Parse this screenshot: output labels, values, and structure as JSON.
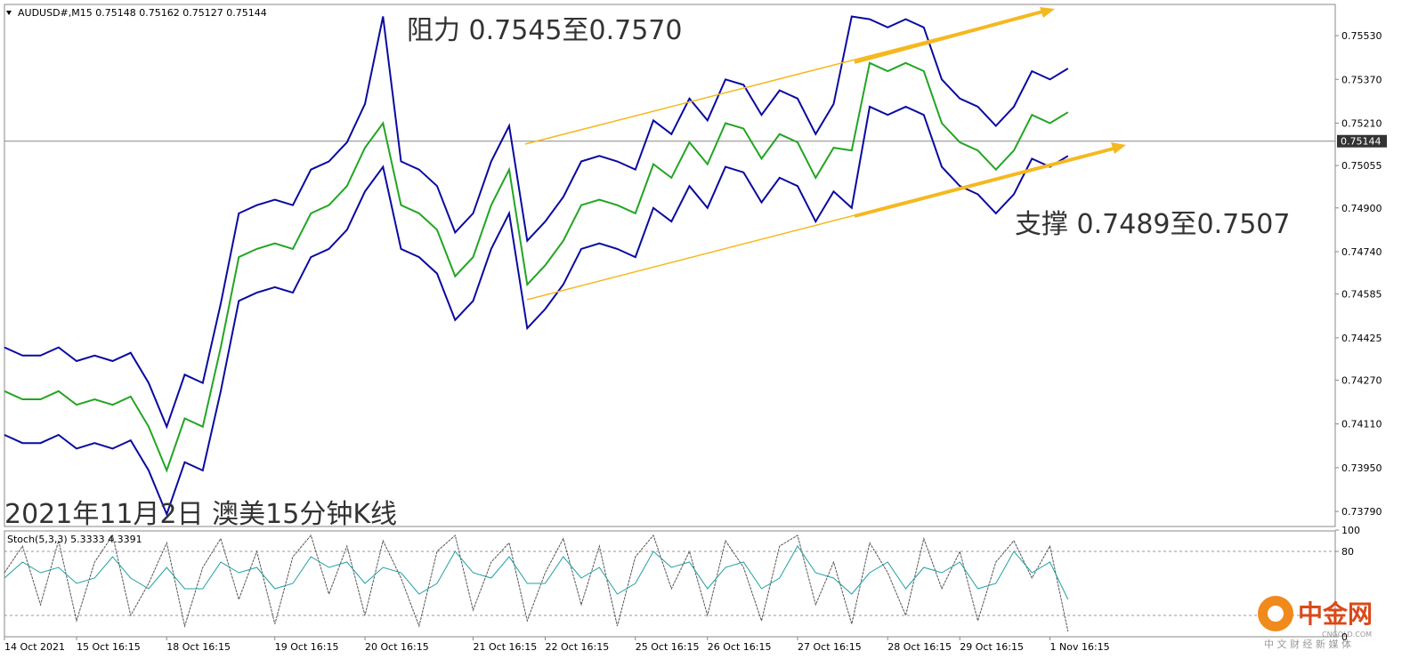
{
  "chart_data": [
    {
      "type": "line",
      "header": "AUDUSD#,M15  0.75148 0.75162 0.75127 0.75144",
      "categories": [
        "14 Oct 2021",
        null,
        null,
        null,
        "15 Oct 16:15",
        null,
        null,
        null,
        null,
        "18 Oct 16:15",
        null,
        null,
        null,
        null,
        null,
        "19 Oct 16:15",
        null,
        null,
        null,
        null,
        "20 Oct 16:15",
        null,
        null,
        null,
        null,
        null,
        "21 Oct 16:15",
        null,
        null,
        null,
        "22 Oct 16:15",
        null,
        null,
        null,
        null,
        "25 Oct 16:15",
        null,
        null,
        null,
        "26 Oct 16:15",
        null,
        null,
        null,
        null,
        "27 Oct 16:15",
        null,
        null,
        null,
        null,
        "28 Oct 16:15",
        null,
        null,
        null,
        "29 Oct 16:15",
        null,
        null,
        null,
        null,
        "1 Nov 16:15",
        null
      ],
      "series": [
        {
          "color": "#0a0aa0",
          "values": [
            0.7439,
            0.7436,
            0.7436,
            0.7439,
            0.7434,
            0.7436,
            0.7434,
            0.7437,
            0.7426,
            0.741,
            0.7429,
            0.7426,
            0.7455,
            0.7488,
            0.7491,
            0.7493,
            0.7491,
            0.7504,
            0.7507,
            0.7514,
            0.7528,
            0.756,
            0.7507,
            0.7504,
            0.7498,
            0.7481,
            0.7488,
            0.7507,
            0.752,
            0.7478,
            0.7485,
            0.7494,
            0.7507,
            0.7509,
            0.7507,
            0.7504,
            0.7522,
            0.7517,
            0.753,
            0.7522,
            0.7537,
            0.7535,
            0.7524,
            0.7533,
            0.753,
            0.7517,
            0.7528,
            0.756,
            0.7559,
            0.7556,
            0.7559,
            0.7556,
            0.7537,
            0.753,
            0.7527,
            0.752,
            0.7527,
            0.754,
            0.7537,
            0.7541
          ]
        },
        {
          "color": "#0a0aa0",
          "values": [
            0.7407,
            0.7404,
            0.7404,
            0.7407,
            0.7402,
            0.7404,
            0.7402,
            0.7405,
            0.7394,
            0.7378,
            0.7397,
            0.7394,
            0.7423,
            0.7456,
            0.7459,
            0.7461,
            0.7459,
            0.7472,
            0.7475,
            0.7482,
            0.7496,
            0.7505,
            0.7475,
            0.7472,
            0.7466,
            0.7449,
            0.7456,
            0.7475,
            0.7488,
            0.7446,
            0.7453,
            0.7462,
            0.7475,
            0.7477,
            0.7475,
            0.7472,
            0.749,
            0.7485,
            0.7498,
            0.749,
            0.7505,
            0.7503,
            0.7492,
            0.7501,
            0.7498,
            0.7485,
            0.7496,
            0.749,
            0.7527,
            0.7524,
            0.7527,
            0.7524,
            0.7505,
            0.7498,
            0.7495,
            0.7488,
            0.7495,
            0.7508,
            0.7505,
            0.7509
          ]
        },
        {
          "color": "#23a523",
          "values": [
            0.7423,
            0.742,
            0.742,
            0.7423,
            0.7418,
            0.742,
            0.7418,
            0.7421,
            0.741,
            0.7394,
            0.7413,
            0.741,
            0.7439,
            0.7472,
            0.7475,
            0.7477,
            0.7475,
            0.7488,
            0.7491,
            0.7498,
            0.7512,
            0.7521,
            0.7491,
            0.7488,
            0.7482,
            0.7465,
            0.7472,
            0.7491,
            0.7504,
            0.7462,
            0.7469,
            0.7478,
            0.7491,
            0.7493,
            0.7491,
            0.7488,
            0.7506,
            0.7501,
            0.7514,
            0.7506,
            0.7521,
            0.7519,
            0.7508,
            0.7517,
            0.7514,
            0.7501,
            0.7512,
            0.7511,
            0.7543,
            0.754,
            0.7543,
            0.754,
            0.7521,
            0.7514,
            0.7511,
            0.7504,
            0.7511,
            0.7524,
            0.7521,
            0.7525
          ]
        }
      ],
      "ylim": [
        0.73735,
        0.75644
      ],
      "yticks": [
        {
          "value": 0.7553,
          "label": "0.75530"
        },
        {
          "value": 0.7537,
          "label": "0.75370"
        },
        {
          "value": 0.7521,
          "label": "0.75210"
        },
        0.75055,
        {
          "value": 0.749,
          "label": "0.74900"
        },
        {
          "value": 0.7474,
          "label": "0.74740"
        },
        0.74585,
        0.74425,
        {
          "value": 0.7427,
          "label": "0.74270"
        },
        {
          "value": 0.7411,
          "label": "0.74110"
        },
        {
          "value": 0.7395,
          "label": "0.73950"
        },
        {
          "value": 0.7379,
          "label": "0.73790"
        }
      ],
      "current_price": 0.75144,
      "annotations": [
        "阻力 0.7545至0.7570",
        "支撑 0.7489至0.7507",
        "2021年11月2日 澳美15分钟K线"
      ]
    },
    {
      "type": "line",
      "title": "Stoch(5,3,3) 5.3333 4.3391",
      "series": [
        {
          "color": "#555555",
          "values": [
            60,
            85,
            30,
            90,
            15,
            70,
            95,
            20,
            50,
            88,
            10,
            65,
            92,
            35,
            80,
            12,
            75,
            95,
            40,
            85,
            20,
            90,
            55,
            10,
            80,
            95,
            25,
            70,
            88,
            15,
            60,
            92,
            30,
            85,
            10,
            75,
            95,
            45,
            80,
            20,
            90,
            65,
            15,
            85,
            95,
            30,
            70,
            12,
            88,
            60,
            20,
            92,
            45,
            80,
            15,
            70,
            90,
            55,
            85,
            5
          ]
        },
        {
          "color": "#20a0a0",
          "values": [
            55,
            70,
            60,
            65,
            50,
            55,
            75,
            55,
            45,
            65,
            45,
            45,
            70,
            60,
            65,
            45,
            50,
            75,
            65,
            70,
            50,
            65,
            60,
            40,
            50,
            80,
            60,
            55,
            75,
            50,
            50,
            75,
            55,
            65,
            40,
            50,
            80,
            65,
            70,
            45,
            65,
            70,
            45,
            55,
            85,
            60,
            55,
            40,
            60,
            70,
            45,
            65,
            60,
            70,
            45,
            50,
            80,
            60,
            70,
            35
          ]
        }
      ],
      "ylim": [
        0,
        100
      ],
      "yticks": [
        0,
        80,
        100
      ],
      "levels": [
        20,
        80
      ]
    }
  ],
  "watermark": {
    "name": "中金网",
    "site": "CNGOLD.COM",
    "slogan": "中 文 财 经 新 媒 体"
  }
}
